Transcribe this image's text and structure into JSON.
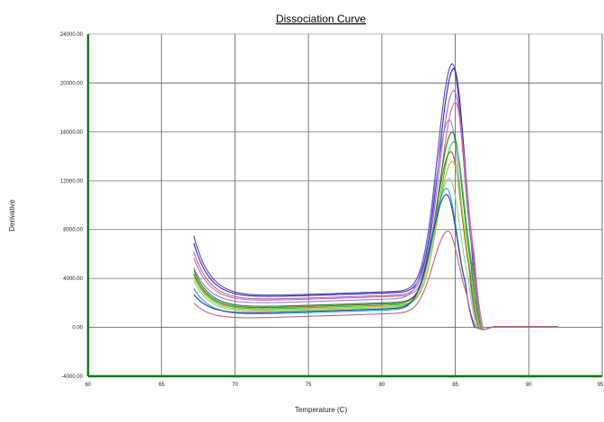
{
  "chart_data": {
    "type": "line",
    "title": "Dissociation Curve",
    "xlabel": "Temperature (C)",
    "ylabel": "Derivative",
    "xlim": [
      60,
      95
    ],
    "ylim": [
      -4000,
      24000
    ],
    "xticks": [
      60,
      65,
      70,
      75,
      80,
      85,
      90,
      95
    ],
    "xtick_labels": [
      "60",
      "65",
      "70",
      "75",
      "80",
      "85",
      "90",
      "95"
    ],
    "yticks": [
      -4000,
      0,
      4000,
      8000,
      12000,
      16000,
      20000,
      24000
    ],
    "ytick_labels": [
      "-4000.00",
      "0.00",
      "4000.00",
      "8000.00",
      "12000.00",
      "16000.00",
      "20000.00",
      "24000.00"
    ],
    "grid": true,
    "x_axis_color": "#0a7a0a",
    "y_axis_color": "#0a7a0a",
    "series": [
      {
        "color": "#5a3cc8",
        "y0": 7800,
        "plateau": 2700,
        "peak": 21200,
        "peakX": 84.8
      },
      {
        "color": "#2a2aa0",
        "y0": 7200,
        "plateau": 2600,
        "peak": 20800,
        "peakX": 84.9
      },
      {
        "color": "#b060c0",
        "y0": 6500,
        "plateau": 2400,
        "peak": 19000,
        "peakX": 84.9
      },
      {
        "color": "#d07090",
        "y0": 6000,
        "plateau": 2300,
        "peak": 18000,
        "peakX": 85.0
      },
      {
        "color": "#8888dd",
        "y0": 5200,
        "plateau": 2100,
        "peak": 16600,
        "peakX": 84.6
      },
      {
        "color": "#108a10",
        "y0": 5000,
        "plateau": 1800,
        "peak": 15600,
        "peakX": 84.8
      },
      {
        "color": "#40c040",
        "y0": 4600,
        "plateau": 1600,
        "peak": 14800,
        "peakX": 84.9
      },
      {
        "color": "#707020",
        "y0": 4700,
        "plateau": 1700,
        "peak": 14000,
        "peakX": 84.7
      },
      {
        "color": "#b8b838",
        "y0": 4400,
        "plateau": 1500,
        "peak": 13200,
        "peakX": 84.8
      },
      {
        "color": "#90d090",
        "y0": 4100,
        "plateau": 1400,
        "peak": 11800,
        "peakX": 84.6
      },
      {
        "color": "#20a8c8",
        "y0": 3500,
        "plateau": 1200,
        "peak": 11000,
        "peakX": 84.4
      },
      {
        "color": "#2a3a90",
        "y0": 3000,
        "plateau": 1300,
        "peak": 10500,
        "peakX": 84.4
      },
      {
        "color": "#c06080",
        "y0": 2300,
        "plateau": 900,
        "peak": 7500,
        "peakX": 84.5
      }
    ]
  }
}
